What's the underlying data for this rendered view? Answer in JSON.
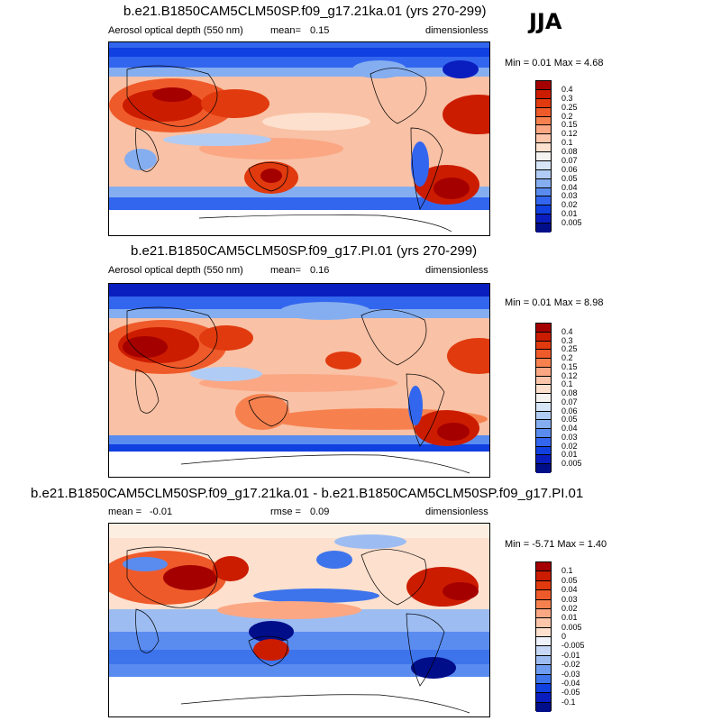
{
  "season": "JJA",
  "panels": [
    {
      "title": "b.e21.B1850CAM5CLM50SP.f09_g17.21ka.01 (yrs 270-299)",
      "variable": "Aerosol optical depth (550 nm)",
      "stat_label": "mean=",
      "stat_value": "0.15",
      "units": "dimensionless",
      "minmax": "Min =  0.01 Max =  4.68"
    },
    {
      "title": "b.e21.B1850CAM5CLM50SP.f09_g17.PI.01 (yrs 270-299)",
      "variable": "Aerosol optical depth (550 nm)",
      "stat_label": "mean=",
      "stat_value": "0.16",
      "units": "dimensionless",
      "minmax": "Min =  0.01 Max =  8.98"
    },
    {
      "title": "b.e21.B1850CAM5CLM50SP.f09_g17.21ka.01 - b.e21.B1850CAM5CLM50SP.f09_g17.PI.01",
      "stat1_label": "mean =",
      "stat1_value": "-0.01",
      "stat2_label": "rmse =",
      "stat2_value": "0.09",
      "units": "dimensionless",
      "minmax": "Min = -5.71 Max =  1.40"
    }
  ],
  "colorbars": {
    "absolute": {
      "levels": [
        "0.4",
        "0.3",
        "0.25",
        "0.2",
        "0.15",
        "0.12",
        "0.1",
        "0.08",
        "0.07",
        "0.06",
        "0.05",
        "0.04",
        "0.03",
        "0.02",
        "0.01",
        "0.005"
      ],
      "colors": [
        "#a50000",
        "#cc1c00",
        "#e03a0e",
        "#ef5a2a",
        "#f6814f",
        "#fba784",
        "#fdc6ab",
        "#fde0cd",
        "#f4f3f0",
        "#d6e5f8",
        "#b1ccf4",
        "#85aef0",
        "#5a8cf0",
        "#3366ee",
        "#1040e0",
        "#0a1ec0",
        "#000e8a"
      ]
    },
    "difference": {
      "levels": [
        "0.1",
        "0.05",
        "0.04",
        "0.03",
        "0.02",
        "0.01",
        "0.005",
        "0",
        "-0.005",
        "-0.01",
        "-0.02",
        "-0.03",
        "-0.04",
        "-0.05",
        "-0.1"
      ],
      "colors": [
        "#a50000",
        "#cc1c00",
        "#e03a0e",
        "#ef5a2a",
        "#f6814f",
        "#fba784",
        "#fdc6ab",
        "#fde0cd",
        "#eef2fa",
        "#c6d8f6",
        "#9dbdf2",
        "#6e9cf0",
        "#3d74ec",
        "#1040e0",
        "#0a1ec0",
        "#000e8a"
      ]
    }
  },
  "chart_data": [
    {
      "type": "heatmap",
      "title": "b.e21.B1850CAM5CLM50SP.f09_g17.21ka.01 (yrs 270-299)",
      "variable": "Aerosol optical depth (550 nm)",
      "units": "dimensionless",
      "season": "JJA",
      "mean": 0.15,
      "min": 0.01,
      "max": 4.68,
      "contour_levels": [
        0.005,
        0.01,
        0.02,
        0.03,
        0.04,
        0.05,
        0.06,
        0.07,
        0.08,
        0.1,
        0.12,
        0.15,
        0.2,
        0.25,
        0.3,
        0.4
      ]
    },
    {
      "type": "heatmap",
      "title": "b.e21.B1850CAM5CLM50SP.f09_g17.PI.01 (yrs 270-299)",
      "variable": "Aerosol optical depth (550 nm)",
      "units": "dimensionless",
      "season": "JJA",
      "mean": 0.16,
      "min": 0.01,
      "max": 8.98,
      "contour_levels": [
        0.005,
        0.01,
        0.02,
        0.03,
        0.04,
        0.05,
        0.06,
        0.07,
        0.08,
        0.1,
        0.12,
        0.15,
        0.2,
        0.25,
        0.3,
        0.4
      ]
    },
    {
      "type": "heatmap",
      "title": "b.e21.B1850CAM5CLM50SP.f09_g17.21ka.01 - b.e21.B1850CAM5CLM50SP.f09_g17.PI.01",
      "units": "dimensionless",
      "season": "JJA",
      "mean": -0.01,
      "rmse": 0.09,
      "min": -5.71,
      "max": 1.4,
      "contour_levels": [
        -0.1,
        -0.05,
        -0.04,
        -0.03,
        -0.02,
        -0.01,
        -0.005,
        0,
        0.005,
        0.01,
        0.02,
        0.03,
        0.04,
        0.05,
        0.1
      ]
    }
  ]
}
